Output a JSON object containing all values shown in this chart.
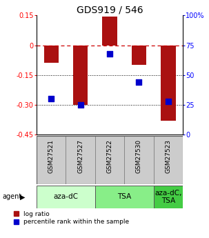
{
  "title": "GDS919 / 546",
  "samples": [
    "GSM27521",
    "GSM27527",
    "GSM27522",
    "GSM27530",
    "GSM27523"
  ],
  "log_ratios": [
    -0.09,
    -0.3,
    0.145,
    -0.1,
    -0.38
  ],
  "percentile_ranks": [
    30,
    25,
    68,
    44,
    28
  ],
  "agent_groups": [
    {
      "label": "aza-dC",
      "span": [
        0,
        2
      ],
      "color": "#ccffcc"
    },
    {
      "label": "TSA",
      "span": [
        2,
        4
      ],
      "color": "#88ee88"
    },
    {
      "label": "aza-dC,\nTSA",
      "span": [
        4,
        5
      ],
      "color": "#44cc44"
    }
  ],
  "ylim_left": [
    -0.45,
    0.15
  ],
  "ylim_right": [
    0,
    100
  ],
  "bar_color": "#aa1111",
  "dot_color": "#0000cc",
  "bar_width": 0.5,
  "dot_size": 40,
  "hline_zero_color": "#cc0000",
  "hline_color": "#000000",
  "left_tick_labels": [
    "0.15",
    "0",
    "-0.15",
    "-0.30",
    "-0.45"
  ],
  "left_tick_vals": [
    0.15,
    0.0,
    -0.15,
    -0.3,
    -0.45
  ],
  "right_tick_labels": [
    "100%",
    "75",
    "50",
    "25",
    "0"
  ],
  "right_tick_vals": [
    100,
    75,
    50,
    25,
    0
  ],
  "sample_label_fontsize": 6.5,
  "agent_label_fontsize": 7.5,
  "title_fontsize": 10,
  "legend_fontsize": 6.5
}
